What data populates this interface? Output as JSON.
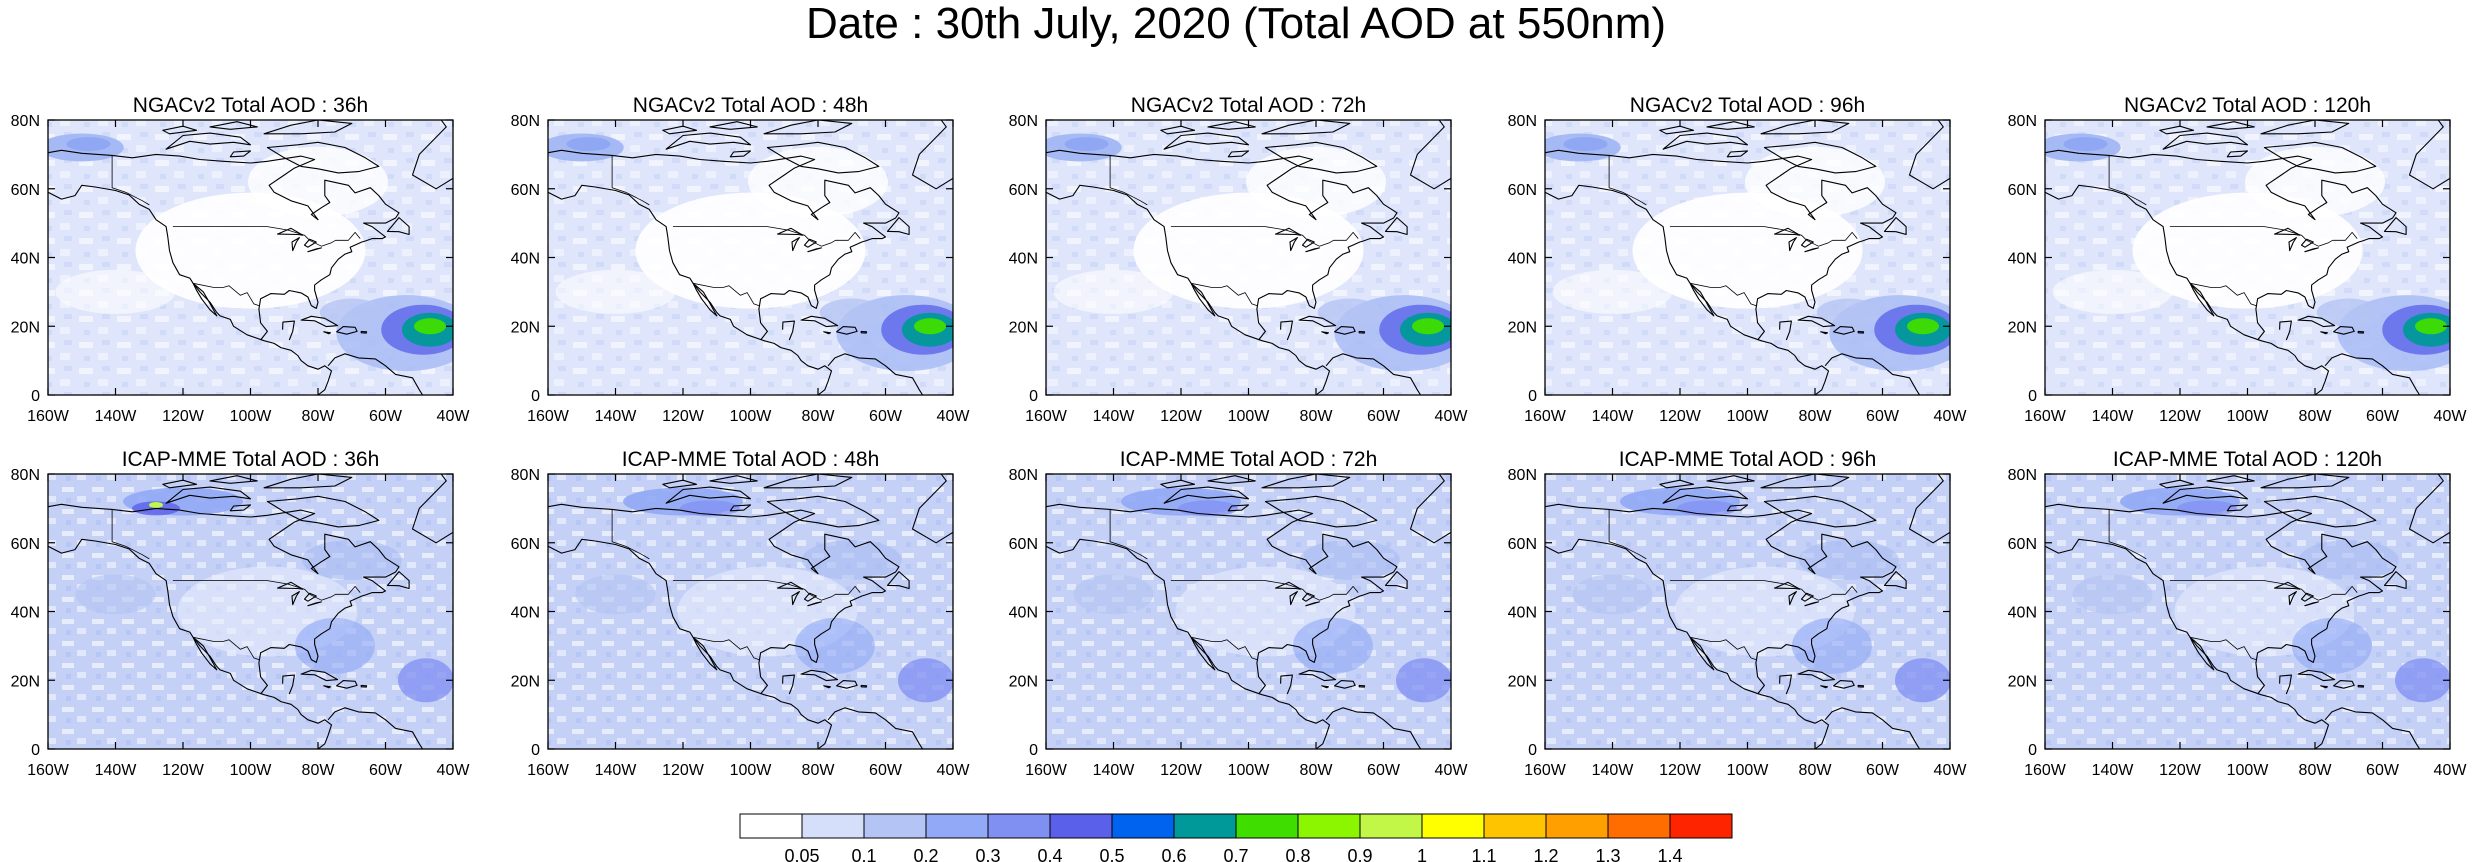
{
  "title": "Date : 30th July, 2020 (Total AOD at 550nm)",
  "lat_labels": [
    "80N",
    "60N",
    "40N",
    "20N",
    "0"
  ],
  "lon_labels": [
    "160W",
    "140W",
    "120W",
    "100W",
    "80W",
    "60W",
    "40W"
  ],
  "panels": [
    {
      "title": "NGACv2 Total AOD : 36h",
      "model": "NGACv2",
      "lead": "36h"
    },
    {
      "title": "NGACv2 Total AOD : 48h",
      "model": "NGACv2",
      "lead": "48h"
    },
    {
      "title": "NGACv2 Total AOD : 72h",
      "model": "NGACv2",
      "lead": "72h"
    },
    {
      "title": "NGACv2 Total AOD : 96h",
      "model": "NGACv2",
      "lead": "96h"
    },
    {
      "title": "NGACv2 Total AOD : 120h",
      "model": "NGACv2",
      "lead": "120h"
    },
    {
      "title": "ICAP-MME Total AOD : 36h",
      "model": "ICAP-MME",
      "lead": "36h"
    },
    {
      "title": "ICAP-MME Total AOD : 48h",
      "model": "ICAP-MME",
      "lead": "48h"
    },
    {
      "title": "ICAP-MME Total AOD : 72h",
      "model": "ICAP-MME",
      "lead": "72h"
    },
    {
      "title": "ICAP-MME Total AOD : 96h",
      "model": "ICAP-MME",
      "lead": "96h"
    },
    {
      "title": "ICAP-MME Total AOD : 120h",
      "model": "ICAP-MME",
      "lead": "120h"
    }
  ],
  "colorbar": {
    "labels": [
      "0.05",
      "0.1",
      "0.2",
      "0.3",
      "0.4",
      "0.5",
      "0.6",
      "0.7",
      "0.8",
      "0.9",
      "1",
      "1.1",
      "1.2",
      "1.3",
      "1.4"
    ],
    "colors": [
      "#ffffff",
      "#d6dffa",
      "#b4c4f4",
      "#91a9f6",
      "#7f8ff2",
      "#5b60ea",
      "#0063ef",
      "#00999a",
      "#3fde00",
      "#8cf500",
      "#c3f747",
      "#ffff00",
      "#ffc400",
      "#ff9f00",
      "#ff6d00",
      "#ff2400"
    ]
  }
}
